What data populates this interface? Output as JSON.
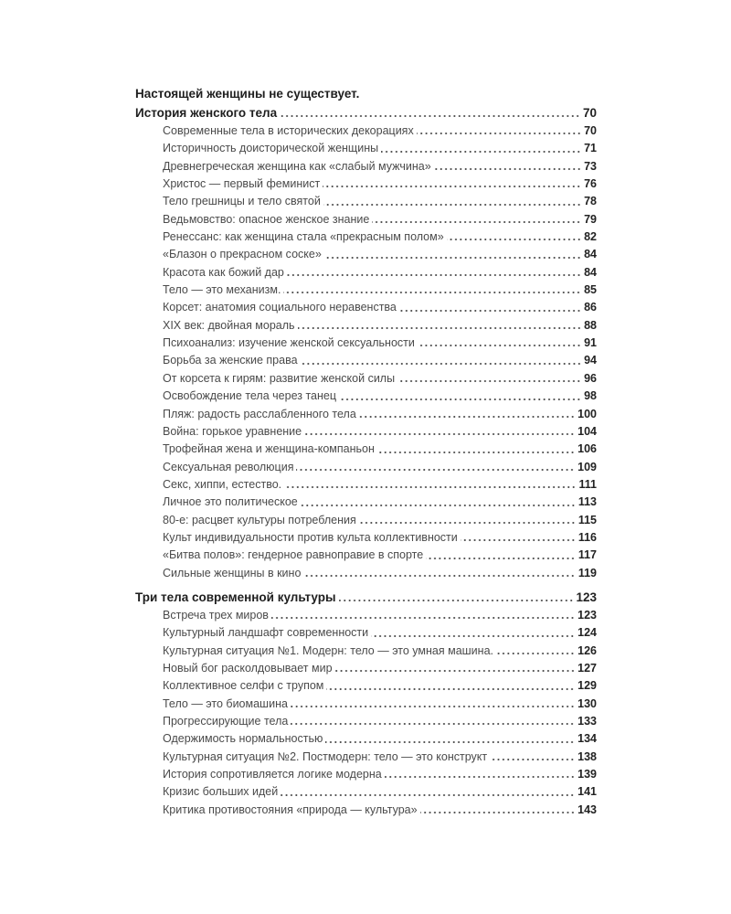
{
  "sections": [
    {
      "title_line1": "Настоящей женщины не существует.",
      "title_line2": "История женского тела",
      "page": "70",
      "items": [
        {
          "title": "Современные тела в исторических декорациях",
          "page": "70"
        },
        {
          "title": "Историчность доисторической женщины",
          "page": "71"
        },
        {
          "title": "Древнегреческая женщина как «слабый мужчина»",
          "page": "73"
        },
        {
          "title": "Христос — первый феминист",
          "page": "76"
        },
        {
          "title": "Тело грешницы и тело святой",
          "page": "78"
        },
        {
          "title": "Ведьмовство: опасное женское знание",
          "page": "79"
        },
        {
          "title": "Ренессанс: как женщина стала «прекрасным полом»",
          "page": "82"
        },
        {
          "title": "«Блазон о прекрасном соске»",
          "page": "84"
        },
        {
          "title": "Красота как божий дар",
          "page": "84"
        },
        {
          "title": "Тело — это механизм.",
          "page": "85"
        },
        {
          "title": "Корсет: анатомия социального неравенства",
          "page": "86"
        },
        {
          "title": "XIX век: двойная мораль",
          "page": "88"
        },
        {
          "title": "Психоанализ: изучение женской сексуальности",
          "page": "91"
        },
        {
          "title": "Борьба за женские права",
          "page": "94"
        },
        {
          "title": "От корсета к гирям: развитие женской силы",
          "page": "96"
        },
        {
          "title": "Освобождение тела через танец",
          "page": "98"
        },
        {
          "title": "Пляж: радость расслабленного тела",
          "page": "100"
        },
        {
          "title": "Война: горькое уравнение",
          "page": "104"
        },
        {
          "title": "Трофейная жена и женщина-компаньон",
          "page": "106"
        },
        {
          "title": "Сексуальная революция",
          "page": "109"
        },
        {
          "title": "Секс, хиппи, естество.",
          "page": "111"
        },
        {
          "title": "Личное это политическое",
          "page": "113"
        },
        {
          "title": "80-е: расцвет культуры потребления",
          "page": "115"
        },
        {
          "title": "Культ индивидуальности против культа коллективности",
          "page": "116"
        },
        {
          "title": "«Битва полов»: гендерное равноправие в спорте",
          "page": "117"
        },
        {
          "title": "Сильные женщины в кино",
          "page": "119"
        }
      ]
    },
    {
      "title_line2": "Три тела современной культуры",
      "page": "123",
      "items": [
        {
          "title": "Встреча трех миров",
          "page": "123"
        },
        {
          "title": "Культурный ландшафт современности",
          "page": "124"
        },
        {
          "title": "Культурная ситуация №1. Модерн: тело — это умная машина.",
          "page": "126"
        },
        {
          "title": "Новый бог расколдовывает мир",
          "page": "127"
        },
        {
          "title": "Коллективное селфи с трупом",
          "page": "129"
        },
        {
          "title": "Тело — это биомашина",
          "page": "130"
        },
        {
          "title": "Прогрессирующие тела",
          "page": "133"
        },
        {
          "title": "Одержимость нормальностью",
          "page": "134"
        },
        {
          "title": "Культурная ситуация №2. Постмодерн: тело — это конструкт",
          "page": "138"
        },
        {
          "title": "История сопротивляется логике модерна",
          "page": "139"
        },
        {
          "title": "Кризис больших идей",
          "page": "141"
        },
        {
          "title": "Критика противостояния «природа — культура»",
          "page": "143"
        }
      ]
    }
  ]
}
